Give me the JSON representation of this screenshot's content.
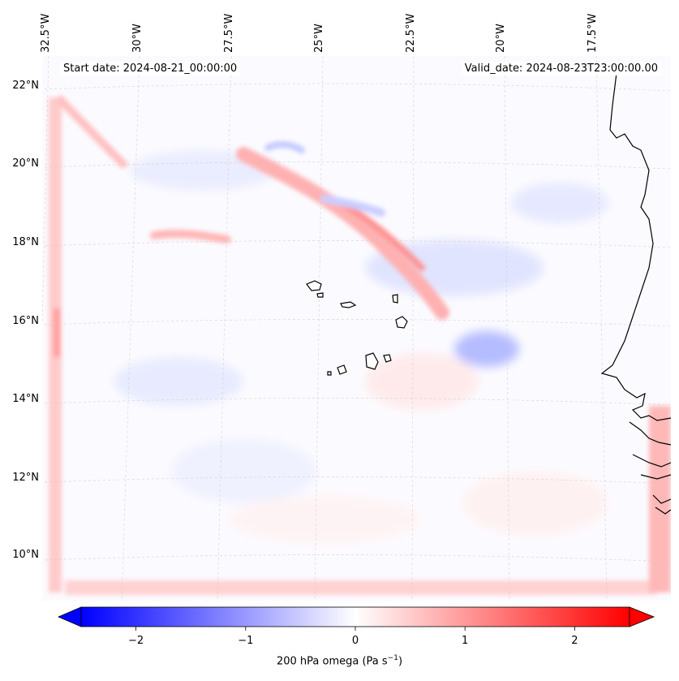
{
  "title_left": "Start date: 2024-08-21_00:00:00",
  "title_right": "Valid_date: 2024-08-23T23:00:00.00",
  "longitude_labels": [
    "32.5°W",
    "30°W",
    "27.5°W",
    "25°W",
    "22.5°W",
    "20°W",
    "17.5°W"
  ],
  "latitude_labels": [
    "22°N",
    "20°N",
    "18°N",
    "16°N",
    "14°N",
    "12°N",
    "10°N"
  ],
  "colorbar": {
    "label_main": "200 hPa omega (Pa s",
    "label_exp": "−1",
    "label_close": ")",
    "ticks": [
      "−2",
      "−1",
      "0",
      "1",
      "2"
    ],
    "tick_values": [
      -2,
      -1,
      0,
      1,
      2
    ],
    "range": [
      -2.5,
      2.5
    ],
    "colormap": "bwr",
    "color_low": "#0000ff",
    "color_mid": "#ffffff",
    "color_high": "#ff0000"
  },
  "map": {
    "gridlines": true,
    "coastline_color": "#000000"
  }
}
